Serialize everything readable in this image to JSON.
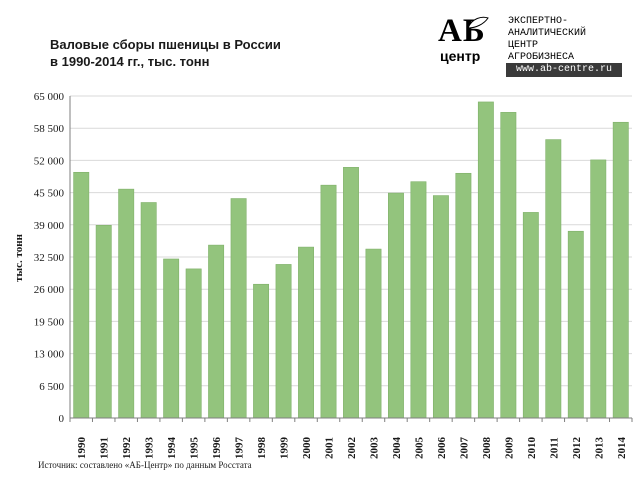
{
  "title": {
    "line1": "Валовые сборы пшеницы в России",
    "line2": "в 1990-2014 гг., тыс. тонн"
  },
  "logo": {
    "abbr": "АБ",
    "word": "центр",
    "lines": [
      "ЭКСПЕРТНО-",
      "АНАЛИТИЧЕСКИЙ",
      "ЦЕНТР",
      "АГРОБИЗНЕСА"
    ],
    "url": "www.ab-centre.ru"
  },
  "source": "Источник: составлено «АБ-Центр» по данным Росстата",
  "colors": {
    "bar": "#93c47d",
    "bar_edge": "#7fb069",
    "grid": "#d9d9d9",
    "axis": "#7f7f7f"
  },
  "chart_data": {
    "type": "bar",
    "title": "Валовые сборы пшеницы в России в 1990-2014 гг., тыс. тонн",
    "ylabel": "тыс. тонн",
    "xlabel": "",
    "ylim": [
      0,
      65000
    ],
    "yticks": [
      0,
      6500,
      13000,
      19500,
      26000,
      32500,
      39000,
      45500,
      52000,
      58500,
      65000
    ],
    "ytick_labels": [
      "0",
      "6 500",
      "13 000",
      "19 500",
      "26 000",
      "32 500",
      "39 000",
      "45 500",
      "52 000",
      "58 500",
      "65 000"
    ],
    "grid": true,
    "categories": [
      "1990",
      "1991",
      "1992",
      "1993",
      "1994",
      "1995",
      "1996",
      "1997",
      "1998",
      "1999",
      "2000",
      "2001",
      "2002",
      "2003",
      "2004",
      "2005",
      "2006",
      "2007",
      "2008",
      "2009",
      "2010",
      "2011",
      "2012",
      "2013",
      "2014"
    ],
    "values": [
      49600,
      38900,
      46200,
      43500,
      32100,
      30100,
      34900,
      44300,
      27000,
      31000,
      34500,
      47000,
      50600,
      34100,
      45400,
      47700,
      44900,
      49400,
      63800,
      61700,
      41500,
      56200,
      37700,
      52100,
      59700
    ]
  }
}
